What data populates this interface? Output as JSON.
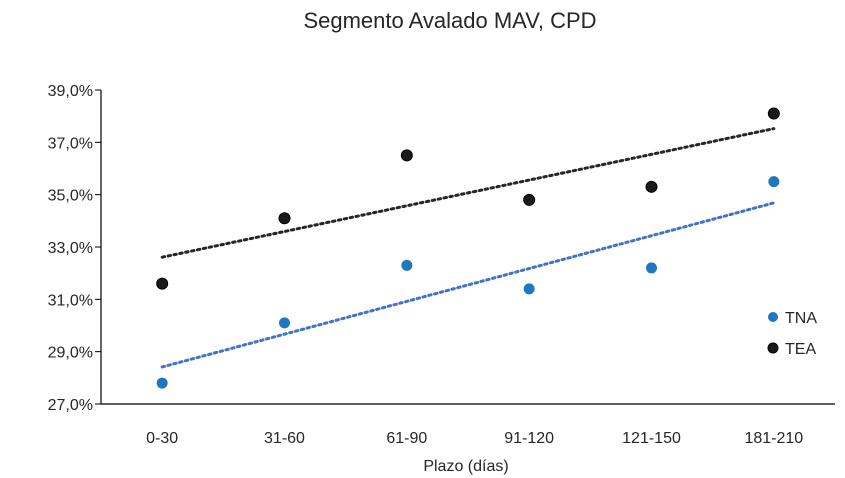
{
  "chart_data": {
    "type": "scatter",
    "title": "Segmento Avalado MAV, CPD",
    "xlabel": "Plazo (días)",
    "ylabel": "",
    "categories": [
      "0-30",
      "31-60",
      "61-90",
      "91-120",
      "121-150",
      "181-210"
    ],
    "ylim": [
      27.0,
      39.0
    ],
    "yticks": [
      "27,0%",
      "29,0%",
      "31,0%",
      "33,0%",
      "35,0%",
      "37,0%",
      "39,0%"
    ],
    "ytick_values": [
      27,
      29,
      31,
      33,
      35,
      37,
      39
    ],
    "legend_position": "right",
    "trendline": "linear",
    "grid": false,
    "series": [
      {
        "name": "TNA",
        "color": "#1f77c0",
        "trend_color": "#4472c4",
        "values": [
          27.8,
          30.1,
          32.3,
          31.4,
          32.2,
          35.5
        ]
      },
      {
        "name": "TEA",
        "color": "#1a1a1a",
        "trend_color": "#262626",
        "values": [
          31.6,
          34.1,
          36.5,
          34.8,
          35.3,
          38.1
        ]
      }
    ]
  }
}
